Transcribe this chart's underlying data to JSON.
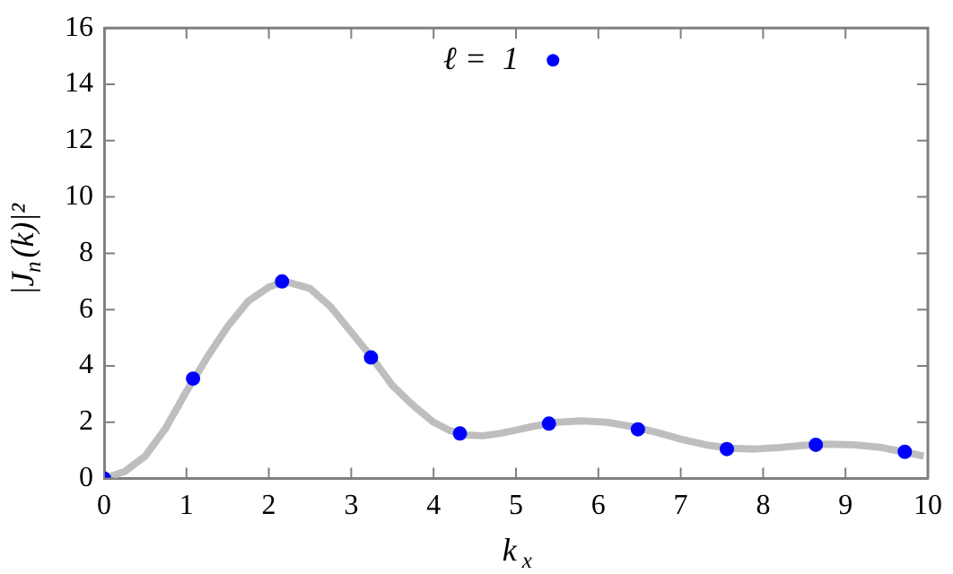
{
  "chart_data": {
    "type": "scatter",
    "xlabel": "k$_{x}$",
    "ylabel": "|J$_{n}$(k)|²",
    "xlim": [
      0,
      10
    ],
    "xticks": [
      0,
      1,
      2,
      3,
      4,
      5,
      6,
      7,
      8,
      9,
      10
    ],
    "ylim": [
      0,
      16
    ],
    "yticks": [
      0,
      2,
      4,
      6,
      8,
      10,
      12,
      14,
      16
    ],
    "grid": false,
    "legend": "top",
    "series": [
      {
        "type": "line",
        "color": "#bebebe",
        "marker": "none",
        "x": [
          0,
          0.25,
          0.5,
          0.75,
          1,
          1.25,
          1.5,
          1.75,
          2,
          2.2,
          2.5,
          2.75,
          3,
          3.25,
          3.5,
          3.75,
          4,
          4.2,
          4.4,
          4.6,
          4.8,
          5,
          5.2,
          5.5,
          5.8,
          6.1,
          6.4,
          6.7,
          7,
          7.3,
          7.6,
          7.9,
          8.2,
          8.5,
          8.8,
          9.1,
          9.4,
          9.7,
          9.95
        ],
        "values": [
          0,
          0.25,
          0.8,
          1.8,
          3.1,
          4.3,
          5.4,
          6.3,
          6.8,
          7.0,
          6.75,
          6.1,
          5.2,
          4.3,
          3.3,
          2.6,
          2.0,
          1.7,
          1.55,
          1.52,
          1.6,
          1.72,
          1.85,
          2.0,
          2.05,
          2.0,
          1.85,
          1.65,
          1.4,
          1.2,
          1.08,
          1.05,
          1.1,
          1.18,
          1.22,
          1.2,
          1.12,
          0.95,
          0.8
        ]
      },
      {
        "name": "ℓ =  1",
        "color": "#0000ff",
        "marker": "circle",
        "x": [
          0,
          1.08,
          2.16,
          3.24,
          4.32,
          5.4,
          6.48,
          7.56,
          8.64,
          9.72
        ],
        "values": [
          0,
          3.55,
          7.0,
          4.3,
          1.6,
          1.95,
          1.75,
          1.05,
          1.2,
          0.95
        ]
      }
    ]
  }
}
